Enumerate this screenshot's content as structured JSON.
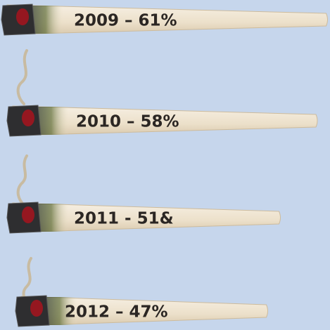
{
  "chart_data": {
    "type": "bar",
    "orientation": "horizontal",
    "values": [
      61,
      58,
      51,
      47
    ],
    "value_labels": [
      "2009 – 61%",
      "2010 – 58%",
      "2011 - 51&",
      "2012 – 47%"
    ],
    "color": "#efe4d0"
  }
}
